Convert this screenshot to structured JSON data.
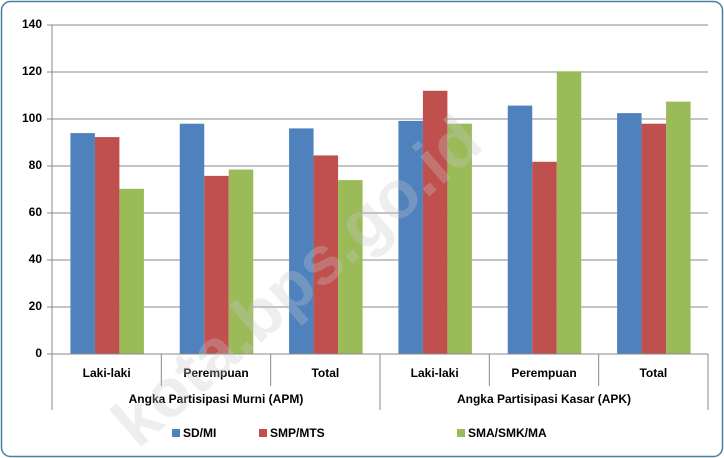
{
  "chart_data": {
    "type": "bar",
    "category_groups": [
      {
        "name": "Angka Partisipasi Murni (APM)",
        "categories": [
          "Laki-laki",
          "Perempuan",
          "Total"
        ]
      },
      {
        "name": "Angka Partisipasi Kasar (APK)",
        "categories": [
          "Laki-laki",
          "Perempuan",
          "Total"
        ]
      }
    ],
    "series": [
      {
        "name": "SD/MI",
        "color": "#4f81bd",
        "values": [
          94,
          98,
          96,
          99.2,
          105.7,
          102.5
        ]
      },
      {
        "name": "SMP/MTS",
        "color": "#c0504d",
        "values": [
          92.3,
          75.8,
          84.5,
          112,
          81.8,
          98
        ]
      },
      {
        "name": "SMA/SMK/MA",
        "color": "#9bbb59",
        "values": [
          70.3,
          78.5,
          74,
          98,
          120.3,
          107.4
        ]
      }
    ],
    "ylim": [
      0,
      140
    ],
    "yticks": [
      0,
      20,
      40,
      60,
      80,
      100,
      120,
      140
    ],
    "grid": true,
    "legend": "bottom",
    "watermark": "kota.bps.go.id"
  }
}
